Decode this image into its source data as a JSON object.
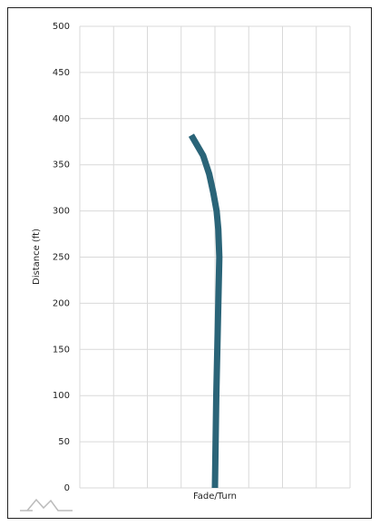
{
  "chart_data": {
    "type": "line",
    "x_label": "Fade/Turn",
    "y_label": "Distance (ft)",
    "x": [
      0,
      0.02,
      0.04,
      0.07,
      0.1,
      0.13,
      0.1,
      0.05,
      -0.05,
      -0.17,
      -0.35,
      -0.7
    ],
    "values": [
      0,
      50,
      100,
      150,
      200,
      250,
      280,
      300,
      320,
      340,
      360,
      382
    ],
    "color": "#2a6478",
    "xlim": [
      -4,
      4
    ],
    "xticks": [
      -4,
      -3,
      -2,
      -1,
      0,
      1,
      2,
      3,
      4
    ],
    "show_xtick_labels": false,
    "ylim": [
      0,
      500
    ],
    "yticks": [
      0,
      50,
      100,
      150,
      200,
      250,
      300,
      350,
      400,
      450,
      500
    ],
    "grid": true
  }
}
